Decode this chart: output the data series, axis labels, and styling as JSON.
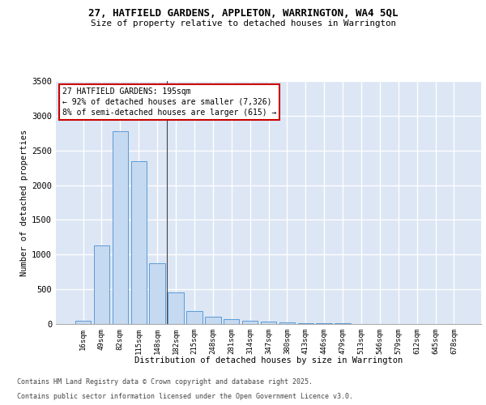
{
  "title_line1": "27, HATFIELD GARDENS, APPLETON, WARRINGTON, WA4 5QL",
  "title_line2": "Size of property relative to detached houses in Warrington",
  "xlabel": "Distribution of detached houses by size in Warrington",
  "ylabel": "Number of detached properties",
  "categories": [
    "16sqm",
    "49sqm",
    "82sqm",
    "115sqm",
    "148sqm",
    "182sqm",
    "215sqm",
    "248sqm",
    "281sqm",
    "314sqm",
    "347sqm",
    "380sqm",
    "413sqm",
    "446sqm",
    "479sqm",
    "513sqm",
    "546sqm",
    "579sqm",
    "612sqm",
    "645sqm",
    "678sqm"
  ],
  "values": [
    50,
    1130,
    2780,
    2350,
    880,
    450,
    185,
    105,
    65,
    50,
    35,
    25,
    15,
    10,
    8,
    5,
    3,
    2,
    1,
    1,
    1
  ],
  "bar_color": "#c5d9f1",
  "bar_edge_color": "#5b9bd5",
  "background_color": "#dce6f5",
  "fig_bg_color": "#ffffff",
  "grid_color": "#ffffff",
  "ylim": [
    0,
    3500
  ],
  "yticks": [
    0,
    500,
    1000,
    1500,
    2000,
    2500,
    3000,
    3500
  ],
  "annotation_title": "27 HATFIELD GARDENS: 195sqm",
  "annotation_line2": "← 92% of detached houses are smaller (7,326)",
  "annotation_line3": "8% of semi-detached houses are larger (615) →",
  "annotation_box_facecolor": "#ffffff",
  "annotation_box_edgecolor": "#cc0000",
  "footer_line1": "Contains HM Land Registry data © Crown copyright and database right 2025.",
  "footer_line2": "Contains public sector information licensed under the Open Government Licence v3.0.",
  "property_bin_index": 5,
  "vline_color": "#444444"
}
